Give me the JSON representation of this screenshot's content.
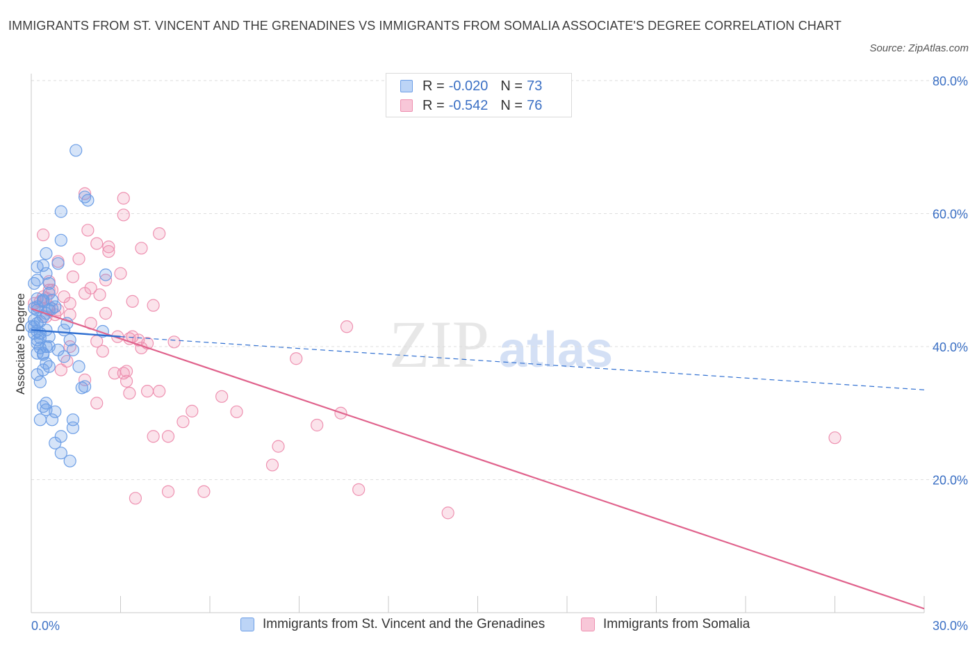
{
  "title": "IMMIGRANTS FROM ST. VINCENT AND THE GRENADINES VS IMMIGRANTS FROM SOMALIA ASSOCIATE'S DEGREE CORRELATION CHART",
  "source": "Source: ZipAtlas.com",
  "watermark": {
    "zip": "ZIP",
    "atlas": "atlas"
  },
  "colors": {
    "blue": "#6c9ee6",
    "blue_line": "#2f6fd1",
    "pink": "#ee90b0",
    "pink_line": "#e0628c",
    "axis_text": "#3a6fc4"
  },
  "legend_top": {
    "rows": [
      {
        "r_label": "R =",
        "r_value": "-0.020",
        "n_label": "N =",
        "n_value": "73"
      },
      {
        "r_label": "R =",
        "r_value": "-0.542",
        "n_label": "N =",
        "n_value": "76"
      }
    ]
  },
  "legend_bottom": [
    {
      "label": "Immigrants from St. Vincent and the Grenadines"
    },
    {
      "label": "Immigrants from Somalia"
    }
  ],
  "chart_data": {
    "type": "scatter",
    "xlabel": "",
    "ylabel": "Associate's Degree",
    "xlim": [
      0,
      30
    ],
    "ylim": [
      0,
      80
    ],
    "x_tick_labels": [
      "0.0%",
      "30.0%"
    ],
    "y_ticks": [
      {
        "value": 80,
        "label": "80.0%"
      },
      {
        "value": 60,
        "label": "60.0%"
      },
      {
        "value": 40,
        "label": "40.0%"
      },
      {
        "value": 20,
        "label": "20.0%"
      }
    ],
    "series": [
      {
        "name": "Immigrants from St. Vincent and the Grenadines",
        "R": -0.02,
        "N": 73,
        "trend_solid": [
          [
            0,
            42.5
          ],
          [
            3.0,
            41.5
          ]
        ],
        "trend_dashed": [
          [
            3.0,
            41.5
          ],
          [
            30,
            33.5
          ]
        ],
        "points": [
          [
            1.5,
            69.5
          ],
          [
            1.8,
            62.5
          ],
          [
            1.9,
            62.0
          ],
          [
            1.0,
            60.3
          ],
          [
            1.0,
            56.0
          ],
          [
            0.5,
            54.0
          ],
          [
            0.9,
            52.5
          ],
          [
            0.2,
            52.0
          ],
          [
            0.4,
            52.2
          ],
          [
            0.5,
            51.0
          ],
          [
            0.2,
            50.0
          ],
          [
            0.1,
            49.5
          ],
          [
            2.5,
            50.8
          ],
          [
            0.6,
            49.5
          ],
          [
            0.6,
            48.0
          ],
          [
            0.4,
            47.0
          ],
          [
            0.7,
            47.0
          ],
          [
            0.4,
            46.8
          ],
          [
            0.8,
            46.0
          ],
          [
            0.2,
            46.0
          ],
          [
            0.6,
            45.5
          ],
          [
            0.5,
            45.0
          ],
          [
            0.4,
            44.5
          ],
          [
            0.1,
            44.0
          ],
          [
            0.2,
            43.5
          ],
          [
            1.2,
            43.5
          ],
          [
            0.0,
            43.0
          ],
          [
            0.5,
            42.5
          ],
          [
            0.2,
            42.3
          ],
          [
            0.1,
            42.0
          ],
          [
            0.3,
            42.0
          ],
          [
            1.1,
            42.5
          ],
          [
            2.4,
            42.3
          ],
          [
            0.6,
            41.5
          ],
          [
            1.3,
            41.0
          ],
          [
            0.2,
            41.0
          ],
          [
            0.5,
            40.0
          ],
          [
            0.6,
            40.0
          ],
          [
            0.3,
            39.8
          ],
          [
            1.4,
            39.5
          ],
          [
            0.9,
            39.5
          ],
          [
            0.4,
            39.0
          ],
          [
            0.2,
            39.0
          ],
          [
            1.1,
            38.5
          ],
          [
            0.5,
            37.5
          ],
          [
            0.6,
            37.0
          ],
          [
            1.6,
            37.0
          ],
          [
            0.4,
            36.5
          ],
          [
            0.2,
            35.8
          ],
          [
            0.3,
            34.7
          ],
          [
            1.8,
            34.0
          ],
          [
            1.7,
            33.8
          ],
          [
            0.5,
            31.5
          ],
          [
            0.4,
            31.0
          ],
          [
            0.5,
            30.5
          ],
          [
            0.8,
            30.2
          ],
          [
            0.3,
            29.0
          ],
          [
            0.7,
            29.0
          ],
          [
            1.4,
            29.0
          ],
          [
            1.4,
            27.8
          ],
          [
            1.0,
            26.5
          ],
          [
            0.8,
            25.5
          ],
          [
            1.0,
            24.0
          ],
          [
            1.3,
            22.8
          ],
          [
            0.1,
            43.0
          ],
          [
            0.2,
            45.5
          ],
          [
            0.3,
            43.8
          ],
          [
            0.1,
            45.8
          ],
          [
            0.4,
            38.8
          ],
          [
            0.2,
            40.5
          ],
          [
            0.3,
            41.3
          ],
          [
            0.7,
            45.7
          ],
          [
            0.2,
            47.2
          ]
        ]
      },
      {
        "name": "Immigrants from Somalia",
        "R": -0.542,
        "N": 76,
        "trend_solid": [
          [
            0,
            45.7
          ],
          [
            30,
            0.6
          ]
        ],
        "points": [
          [
            1.8,
            63.0
          ],
          [
            3.1,
            62.3
          ],
          [
            3.1,
            59.8
          ],
          [
            1.9,
            57.5
          ],
          [
            0.4,
            56.8
          ],
          [
            4.3,
            57.0
          ],
          [
            2.2,
            55.5
          ],
          [
            2.6,
            55.0
          ],
          [
            3.7,
            54.8
          ],
          [
            2.6,
            54.3
          ],
          [
            1.6,
            53.2
          ],
          [
            0.9,
            52.8
          ],
          [
            3.0,
            51.0
          ],
          [
            1.4,
            50.5
          ],
          [
            2.5,
            50.0
          ],
          [
            0.6,
            49.8
          ],
          [
            0.7,
            48.5
          ],
          [
            2.0,
            48.8
          ],
          [
            0.6,
            48.5
          ],
          [
            1.8,
            48.0
          ],
          [
            2.3,
            47.8
          ],
          [
            1.1,
            47.5
          ],
          [
            0.5,
            47.3
          ],
          [
            0.4,
            47.5
          ],
          [
            0.3,
            46.8
          ],
          [
            0.1,
            46.5
          ],
          [
            1.3,
            46.5
          ],
          [
            3.4,
            46.8
          ],
          [
            4.1,
            46.2
          ],
          [
            0.6,
            46.0
          ],
          [
            0.2,
            46.0
          ],
          [
            0.9,
            45.5
          ],
          [
            0.8,
            44.8
          ],
          [
            0.5,
            44.5
          ],
          [
            1.3,
            44.8
          ],
          [
            2.0,
            43.5
          ],
          [
            10.6,
            43.0
          ],
          [
            3.4,
            41.5
          ],
          [
            3.6,
            41.0
          ],
          [
            3.3,
            41.2
          ],
          [
            2.9,
            41.5
          ],
          [
            2.2,
            40.8
          ],
          [
            3.9,
            40.5
          ],
          [
            4.8,
            40.7
          ],
          [
            3.7,
            39.8
          ],
          [
            1.3,
            40.0
          ],
          [
            2.4,
            39.3
          ],
          [
            1.2,
            37.8
          ],
          [
            8.9,
            38.2
          ],
          [
            3.1,
            36.0
          ],
          [
            3.2,
            36.3
          ],
          [
            2.8,
            36.0
          ],
          [
            1.0,
            36.5
          ],
          [
            3.2,
            34.8
          ],
          [
            1.8,
            35.0
          ],
          [
            3.9,
            33.3
          ],
          [
            4.3,
            33.3
          ],
          [
            3.3,
            33.0
          ],
          [
            6.4,
            32.5
          ],
          [
            2.2,
            31.5
          ],
          [
            5.4,
            30.3
          ],
          [
            6.9,
            30.2
          ],
          [
            10.4,
            30.0
          ],
          [
            5.1,
            28.7
          ],
          [
            9.6,
            28.2
          ],
          [
            4.1,
            26.5
          ],
          [
            4.6,
            26.5
          ],
          [
            8.3,
            25.0
          ],
          [
            27.0,
            26.3
          ],
          [
            8.1,
            22.2
          ],
          [
            11.0,
            18.5
          ],
          [
            4.6,
            18.2
          ],
          [
            5.8,
            18.2
          ],
          [
            3.5,
            17.2
          ],
          [
            14.0,
            15.0
          ],
          [
            2.5,
            45.0
          ]
        ]
      }
    ]
  }
}
